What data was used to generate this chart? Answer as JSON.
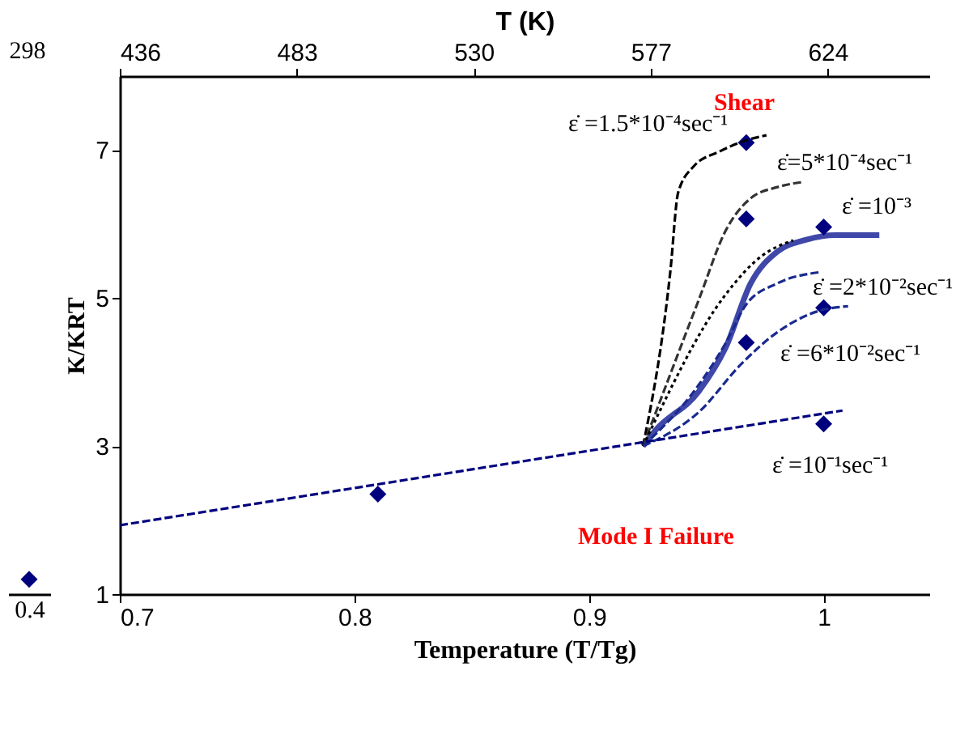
{
  "chart_data": [
    {
      "type": "scatter",
      "categories": [
        "0.4"
      ],
      "values": [
        1.2
      ],
      "color": "#00007f",
      "marker": "diamond",
      "ylim": [
        1,
        8
      ],
      "tick_labels": "x",
      "annotations": [
        "298"
      ]
    },
    {
      "type": "line",
      "xlabel": "Temperature (T/Tg)",
      "ylabel": "K/KRT",
      "x2label": "T (K)",
      "xlim": [
        0.7,
        1.045
      ],
      "xticks": [
        0.7,
        0.8,
        0.9,
        {
          "value": 1,
          "label": "1"
        }
      ],
      "x2lim": [
        436,
        651
      ],
      "x2ticks": [
        436,
        483,
        530,
        577,
        624
      ],
      "ylim": [
        1,
        8
      ],
      "yticks": [
        1,
        3,
        5,
        7
      ],
      "grid": false,
      "series": [
        {
          "type": "scatter",
          "marker": "diamond",
          "color": "#00007f",
          "x": [
            0.81,
            0.967,
            0.967,
            1.0,
            0.967,
            1.0,
            1.0
          ],
          "values": [
            2.35,
            7.1,
            6.07,
            5.96,
            4.4,
            4.87,
            3.3
          ]
        },
        {
          "color": "#000000",
          "line_style": "dashed",
          "x": [
            0.923,
            0.9346,
            0.938,
            0.9446,
            0.9555,
            0.9689,
            0.9756
          ],
          "values": [
            3.0,
            5.35,
            6.43,
            6.78,
            6.98,
            7.15,
            7.2
          ]
        },
        {
          "color": "#333333",
          "line_style": "dashed",
          "x": [
            0.923,
            0.9468,
            0.9582,
            0.9689,
            0.9803,
            0.9916
          ],
          "values": [
            3.0,
            4.98,
            5.91,
            6.35,
            6.5,
            6.57
          ]
        },
        {
          "color": "#000000",
          "line_style": "dotted",
          "x": [
            0.923,
            0.958,
            0.9736,
            0.987
          ],
          "values": [
            3.0,
            5.04,
            5.57,
            5.78
          ]
        },
        {
          "color": "#3f48a8",
          "line_style": "solid",
          "x": [
            0.923,
            0.9279,
            0.9468,
            0.9582,
            0.9689,
            0.9803,
            0.9916,
            1.005,
            1.0237
          ],
          "values": [
            3.0,
            3.2,
            3.74,
            4.33,
            5.2,
            5.63,
            5.78,
            5.85,
            5.85
          ]
        },
        {
          "color": "#1a2a8f",
          "line_style": "dashed",
          "x": [
            0.923,
            0.9468,
            0.9582,
            0.9669,
            0.9803,
            0.9983
          ],
          "values": [
            3.0,
            3.83,
            4.39,
            4.91,
            5.2,
            5.35
          ]
        },
        {
          "color": "#1a2a8f",
          "line_style": "dashed",
          "x": [
            0.923,
            0.9468,
            0.9649,
            0.9803,
            0.9983,
            1.0104
          ],
          "values": [
            3.0,
            3.46,
            4.11,
            4.54,
            4.83,
            4.89
          ]
        },
        {
          "color": "#00007f",
          "line_style": "dashed",
          "x": [
            0.7,
            1.008
          ],
          "values": [
            1.93,
            3.48
          ]
        }
      ],
      "annotations": [
        "ε̇ =1.5*10⁻⁴sec⁻¹",
        "ε̇=5*10⁻⁴sec⁻¹",
        "ε̇ =10⁻³",
        "ε̇ =2*10⁻²sec⁻¹",
        "ε̇ =6*10⁻²sec⁻¹",
        "ε̇ =10⁻¹sec⁻¹",
        "Shear",
        "Mode I Failure"
      ]
    }
  ]
}
